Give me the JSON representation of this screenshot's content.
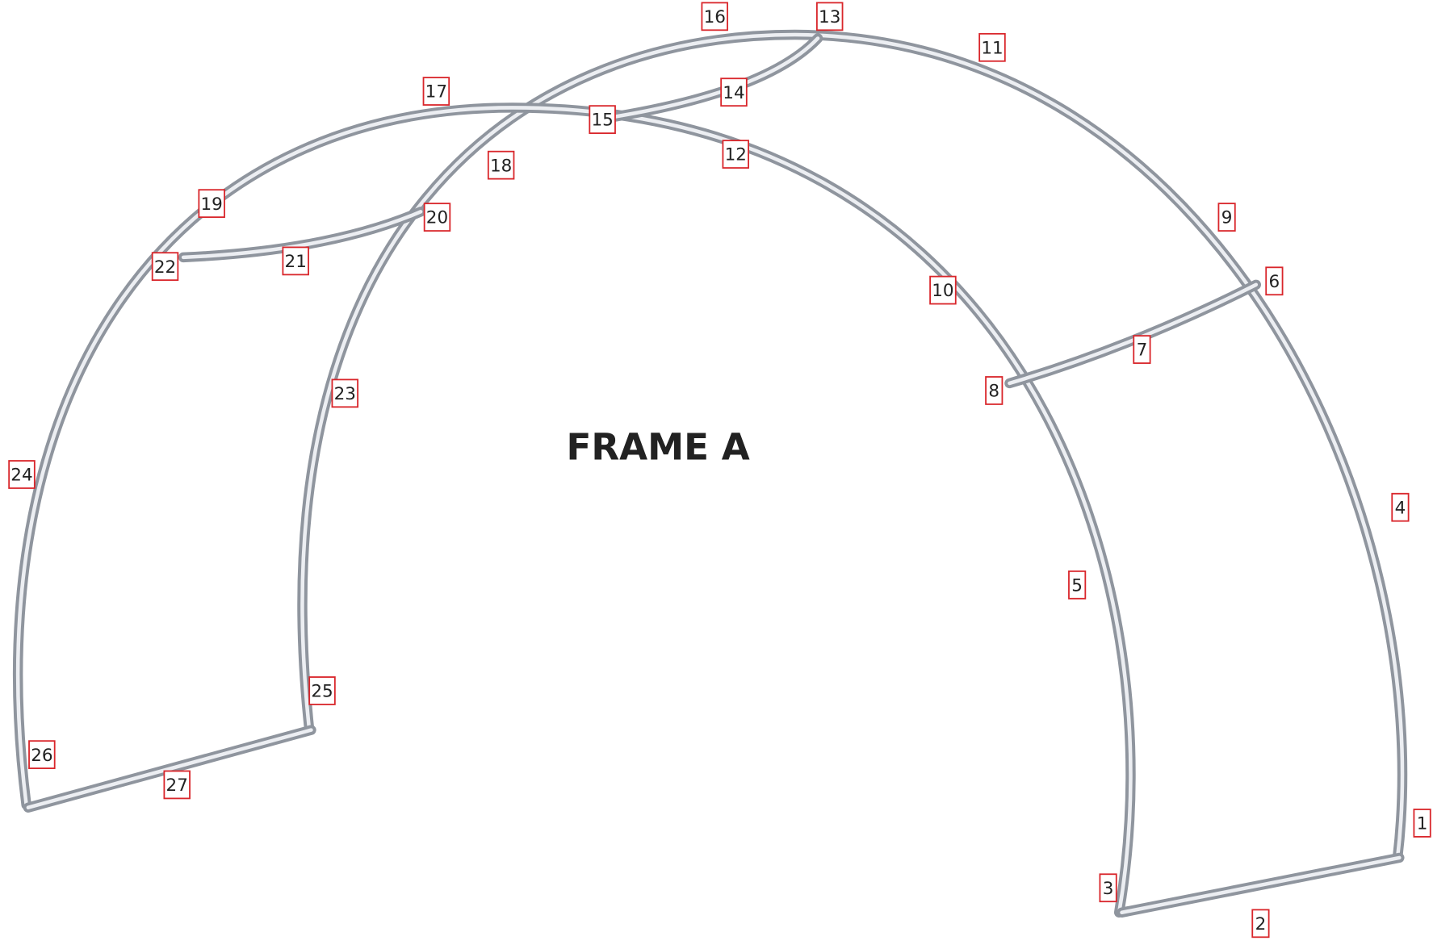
{
  "title": "FRAME A",
  "nodes": [
    {
      "label": "1"
    },
    {
      "label": "2"
    },
    {
      "label": "3"
    },
    {
      "label": "4"
    },
    {
      "label": "5"
    },
    {
      "label": "6"
    },
    {
      "label": "7"
    },
    {
      "label": "8"
    },
    {
      "label": "9"
    },
    {
      "label": "10"
    },
    {
      "label": "11"
    },
    {
      "label": "12"
    },
    {
      "label": "13"
    },
    {
      "label": "14"
    },
    {
      "label": "15"
    },
    {
      "label": "16"
    },
    {
      "label": "17"
    },
    {
      "label": "18"
    },
    {
      "label": "19"
    },
    {
      "label": "20"
    },
    {
      "label": "21"
    },
    {
      "label": "22"
    },
    {
      "label": "23"
    },
    {
      "label": "24"
    },
    {
      "label": "25"
    },
    {
      "label": "26"
    },
    {
      "label": "27"
    }
  ]
}
